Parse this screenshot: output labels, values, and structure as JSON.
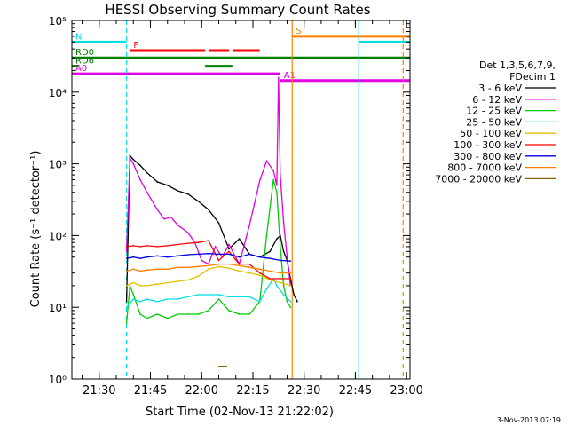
{
  "chart_data": {
    "type": "line",
    "title": "HESSI Observing Summary Count Rates",
    "xlabel": "Start Time (02-Nov-13 21:22:02)",
    "ylabel": "Count Rate (s⁻¹ detector⁻¹)",
    "yscale": "log",
    "ylim": [
      1,
      100000
    ],
    "x_unit": "minutes from 21:22:02",
    "xlim": [
      0,
      99
    ],
    "x_ticks": [
      8,
      23,
      38,
      53,
      68,
      83,
      98
    ],
    "x_tick_labels": [
      "21:30",
      "21:45",
      "22:00",
      "22:15",
      "22:30",
      "22:45",
      "23:00"
    ],
    "y_ticks": [
      1,
      10,
      100,
      1000,
      10000,
      100000
    ],
    "y_tick_labels": [
      "10⁰",
      "10¹",
      "10²",
      "10³",
      "10⁴",
      "10⁵"
    ],
    "legend_placement": "right",
    "legend_header": [
      "Det 1,3,5,6,7,9,",
      "FDecim 1"
    ],
    "series": [
      {
        "name": "3 - 6 keV",
        "color": "#000000",
        "x": [
          16,
          17,
          18,
          20,
          22,
          25,
          28,
          31,
          34,
          37,
          40,
          43,
          46,
          49,
          52,
          55,
          58,
          60,
          61,
          62,
          63,
          64,
          65,
          66
        ],
        "y": [
          12,
          1300,
          1150,
          950,
          750,
          560,
          500,
          420,
          380,
          300,
          230,
          150,
          65,
          90,
          55,
          50,
          60,
          90,
          100,
          60,
          45,
          25,
          15,
          12
        ]
      },
      {
        "name": "6 - 12 keV",
        "color": "#e000e0",
        "x": [
          16,
          17,
          18,
          20,
          22,
          25,
          27,
          29,
          31,
          34,
          36,
          38,
          40,
          42,
          44,
          46,
          49,
          52,
          55,
          57,
          59,
          60,
          60.5,
          61,
          62,
          63,
          64
        ],
        "y": [
          60,
          1200,
          1000,
          600,
          400,
          230,
          170,
          180,
          140,
          110,
          80,
          45,
          40,
          70,
          50,
          75,
          40,
          140,
          580,
          1100,
          800,
          500,
          16000,
          700,
          150,
          50,
          20
        ]
      },
      {
        "name": "12 - 25 keV",
        "color": "#00cc00",
        "x": [
          16,
          17,
          18,
          20,
          22,
          25,
          28,
          31,
          34,
          37,
          40,
          43,
          46,
          49,
          52,
          55,
          57,
          59,
          60,
          61,
          62,
          63,
          64
        ],
        "y": [
          6,
          20,
          15,
          8,
          7,
          8,
          7,
          8,
          8,
          8,
          9,
          13,
          9,
          8,
          8,
          12,
          100,
          600,
          400,
          70,
          20,
          12,
          10
        ]
      },
      {
        "name": "25 - 50 keV",
        "color": "#00e0e0",
        "x": [
          16,
          18,
          20,
          22,
          25,
          28,
          31,
          34,
          37,
          40,
          43,
          46,
          49,
          52,
          55,
          57,
          59,
          60,
          62,
          64
        ],
        "y": [
          10,
          13,
          12,
          13,
          12,
          13,
          13,
          14,
          15,
          15,
          15,
          14,
          14,
          14,
          12,
          18,
          25,
          20,
          15,
          12
        ]
      },
      {
        "name": "50 - 100 keV",
        "color": "#e0c000",
        "x": [
          16,
          18,
          20,
          22,
          25,
          28,
          31,
          34,
          37,
          40,
          43,
          46,
          49,
          52,
          55,
          58,
          61,
          64
        ],
        "y": [
          20,
          22,
          20,
          20,
          21,
          22,
          23,
          24,
          27,
          34,
          37,
          35,
          32,
          30,
          28,
          24,
          22,
          20
        ]
      },
      {
        "name": "100 - 300 keV",
        "color": "#ff0000",
        "x": [
          16,
          18,
          20,
          22,
          25,
          28,
          31,
          34,
          37,
          40,
          43,
          46,
          49,
          52,
          55,
          58,
          61,
          64
        ],
        "y": [
          70,
          72,
          70,
          72,
          70,
          72,
          75,
          78,
          80,
          85,
          45,
          60,
          40,
          40,
          30,
          25,
          25,
          25
        ]
      },
      {
        "name": "300 - 800 keV",
        "color": "#0000e0",
        "x": [
          16,
          18,
          20,
          22,
          25,
          28,
          31,
          34,
          37,
          40,
          43,
          46,
          49,
          52,
          55,
          58,
          61,
          64
        ],
        "y": [
          48,
          50,
          48,
          50,
          52,
          50,
          52,
          54,
          55,
          56,
          55,
          55,
          50,
          55,
          50,
          48,
          45,
          44
        ]
      },
      {
        "name": "800 - 7000 keV",
        "color": "#ff8000",
        "x": [
          16,
          18,
          20,
          22,
          25,
          28,
          31,
          34,
          37,
          40,
          43,
          46,
          49,
          52,
          55,
          58,
          61,
          64
        ],
        "y": [
          32,
          34,
          32,
          33,
          34,
          34,
          36,
          36,
          37,
          38,
          40,
          40,
          38,
          36,
          34,
          32,
          30,
          30
        ]
      },
      {
        "name": "7000 - 20000 keV",
        "color": "#806000",
        "x": [
          43,
          43.3,
          44,
          44.3,
          45,
          45.3
        ],
        "y": [
          1.5,
          1.5,
          1.5,
          1.5,
          1.5,
          1.5
        ]
      }
    ],
    "flag_bars": [
      {
        "label": "N",
        "color": "#00e0e0",
        "level": 50000,
        "spans": [
          [
            0,
            16
          ]
        ]
      },
      {
        "label": "F",
        "color": "#ff0000",
        "level": 38000,
        "spans": [
          [
            17,
            39
          ],
          [
            40,
            46
          ],
          [
            47,
            55
          ]
        ]
      },
      {
        "label": "S",
        "color": "#ff8000",
        "level": 60000,
        "spans": [
          [
            64.5,
            99
          ]
        ]
      },
      {
        "label": "",
        "color": "#00e0e0",
        "level": 50000,
        "spans": [
          [
            84,
            99
          ]
        ]
      },
      {
        "label": "RD0",
        "color": "#008000",
        "level": 30000,
        "spans": [
          [
            0,
            99
          ]
        ]
      },
      {
        "label": "RD6",
        "color": "#008000",
        "level": 23000,
        "spans": [
          [
            0,
            2
          ],
          [
            39,
            47
          ]
        ]
      },
      {
        "label": "A0",
        "color": "#e000e0",
        "level": 18000,
        "spans": [
          [
            0,
            61
          ]
        ]
      },
      {
        "label": "A1",
        "color": "#e000e0",
        "level": 14500,
        "spans": [
          [
            61,
            99
          ]
        ]
      }
    ],
    "vlines": [
      {
        "color": "#00e0e0",
        "x": 16,
        "dashed": true
      },
      {
        "color": "#ff8000",
        "x": 64.5,
        "dashed": false
      },
      {
        "color": "#00e0e0",
        "x": 84,
        "dashed": false
      },
      {
        "color": "#ff8000",
        "x": 97,
        "dashed": true
      }
    ],
    "footer_date": "3-Nov-2013 07:19"
  }
}
